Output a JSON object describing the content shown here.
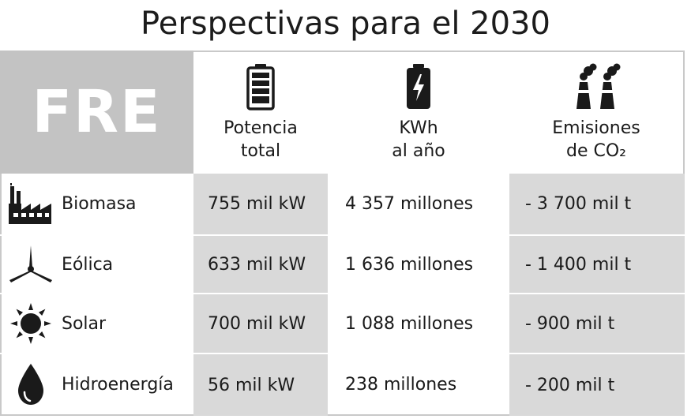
{
  "title": "Perspectivas para el 2030",
  "table": {
    "corner_label": "FRE",
    "columns": [
      {
        "icon": "battery-icon",
        "label_line1": "Potencia",
        "label_line2": "total"
      },
      {
        "icon": "charging-battery-icon",
        "label_line1": "KWh",
        "label_line2": "al año"
      },
      {
        "icon": "smokestack-icon",
        "label_line1": "Emisiones",
        "label_line2": "de CO₂"
      }
    ],
    "rows": [
      {
        "icon": "factory-icon",
        "label": "Biomasa",
        "potencia": "755 mil kW",
        "kwh": "4 357 millones",
        "emisiones": "- 3 700 mil t"
      },
      {
        "icon": "wind-turbine-icon",
        "label": "Eólica",
        "potencia": "633 mil kW",
        "kwh": "1 636 millones",
        "emisiones": "- 1 400 mil t"
      },
      {
        "icon": "sun-icon",
        "label": "Solar",
        "potencia": "700 mil kW",
        "kwh": "1 088 millones",
        "emisiones": "- 900 mil t"
      },
      {
        "icon": "water-drop-icon",
        "label": "Hidroenergía",
        "potencia": "56 mil kW",
        "kwh": "238 millones",
        "emisiones": "- 200 mil t"
      }
    ]
  }
}
